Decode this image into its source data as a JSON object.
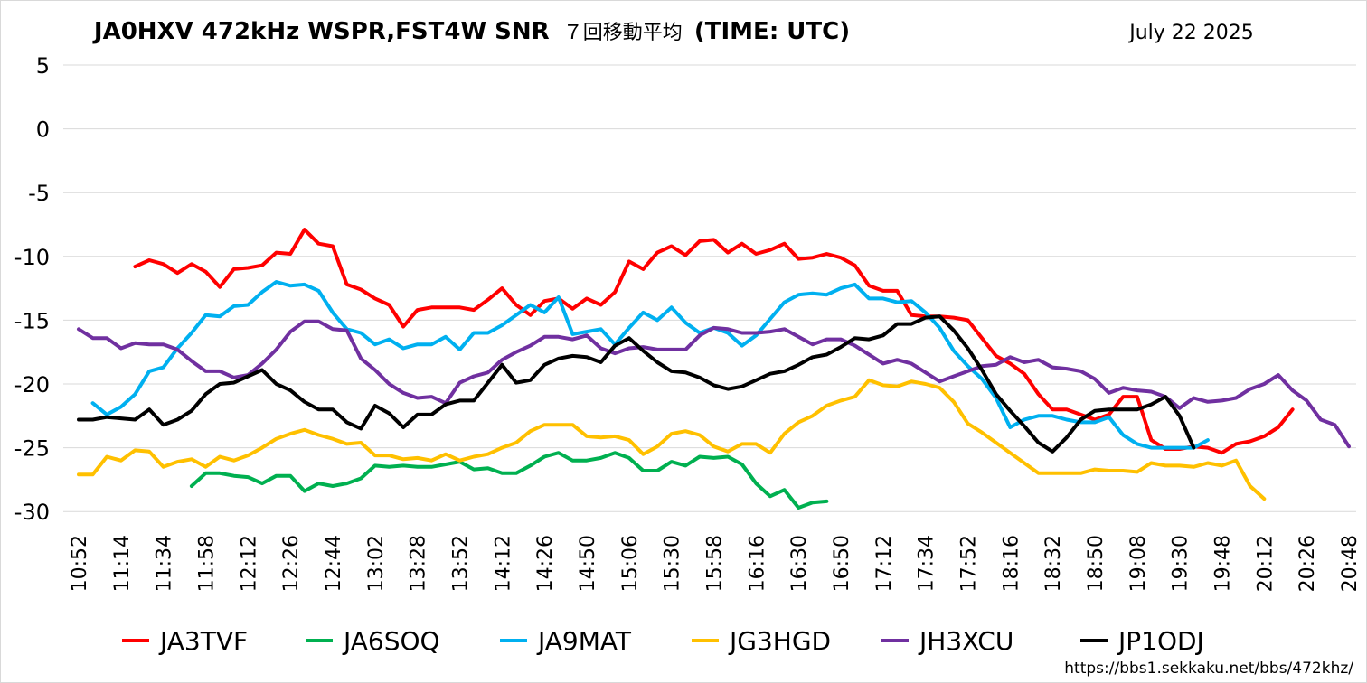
{
  "chart_data": {
    "type": "line",
    "title_main_1": "JA0HXV 472kHz WSPR,FST4W SNR",
    "title_sub": "７回移動平均",
    "title_main_2": "(TIME: UTC)",
    "date": "July 22 2025",
    "footer_url": "https://bbs1.sekkaku.net/bbs/472khz/",
    "xlabel": "",
    "ylabel": "",
    "ylim": [
      -31,
      6
    ],
    "yticks": [
      5,
      0,
      -5,
      -10,
      -15,
      -20,
      -25,
      -30
    ],
    "x_tick_labels": [
      "10:52",
      "11:14",
      "11:34",
      "11:58",
      "12:12",
      "12:26",
      "12:44",
      "13:02",
      "13:28",
      "13:52",
      "14:12",
      "14:26",
      "14:50",
      "15:06",
      "15:30",
      "15:58",
      "16:16",
      "16:30",
      "16:50",
      "17:12",
      "17:34",
      "17:52",
      "18:16",
      "18:32",
      "18:50",
      "19:08",
      "19:30",
      "19:48",
      "20:12",
      "20:26",
      "20:48"
    ],
    "x_count": 91,
    "x_tick_every": 3,
    "legend_position": "bottom",
    "series": [
      {
        "name": "JA3TVF",
        "color": "#ff0000",
        "start": 4,
        "values": [
          -10.8,
          -10.3,
          -10.6,
          -11.3,
          -10.6,
          -11.2,
          -12.4,
          -11,
          -10.9,
          -10.7,
          -9.7,
          -9.8,
          -7.9,
          -9,
          -9.2,
          -12.2,
          -12.6,
          -13.3,
          -13.8,
          -15.5,
          -14.2,
          -14,
          -14,
          -14,
          -14.2,
          -13.4,
          -12.5,
          -13.8,
          -14.6,
          -13.5,
          -13.3,
          -14.1,
          -13.3,
          -13.8,
          -12.8,
          -10.4,
          -11,
          -9.7,
          -9.2,
          -9.9,
          -8.8,
          -8.7,
          -9.7,
          -9,
          -9.8,
          -9.5,
          -9,
          -10.2,
          -10.1,
          -9.8,
          -10.1,
          -10.7,
          -12.3,
          -12.7,
          -12.7,
          -14.6,
          -14.7,
          -14.7,
          -14.8,
          -15,
          -16.4,
          -17.8,
          -18.4,
          -19.2,
          -20.8,
          -22,
          -22,
          -22.4,
          -22.8,
          -22.4,
          -21,
          -21,
          -24.4,
          -25.1,
          -25.1,
          -24.9,
          -25,
          -25.4,
          -24.7,
          -24.5,
          -24.1,
          -23.4,
          -22
        ]
      },
      {
        "name": "JA6SOQ",
        "color": "#00b050",
        "start": 8,
        "values": [
          -28,
          -27,
          -27,
          -27.2,
          -27.3,
          -27.8,
          -27.2,
          -27.2,
          -28.4,
          -27.8,
          -28,
          -27.8,
          -27.4,
          -26.4,
          -26.5,
          -26.4,
          -26.5,
          -26.5,
          -26.3,
          -26.1,
          -26.7,
          -26.6,
          -27,
          -27,
          -26.4,
          -25.7,
          -25.4,
          -26,
          -26,
          -25.8,
          -25.4,
          -25.8,
          -26.8,
          -26.8,
          -26.1,
          -26.4,
          -25.7,
          -25.8,
          -25.7,
          -26.3,
          -27.8,
          -28.8,
          -28.3,
          -29.7,
          -29.3,
          -29.2
        ]
      },
      {
        "name": "JA9MAT",
        "color": "#00b0f0",
        "start": 1,
        "values": [
          -21.5,
          -22.4,
          -21.8,
          -20.8,
          -19,
          -18.7,
          -17.2,
          -16,
          -14.6,
          -14.7,
          -13.9,
          -13.8,
          -12.8,
          -12,
          -12.3,
          -12.2,
          -12.7,
          -14.4,
          -15.7,
          -16,
          -16.9,
          -16.5,
          -17.2,
          -16.9,
          -16.9,
          -16.3,
          -17.3,
          -16,
          -16,
          -15.4,
          -14.6,
          -13.8,
          -14.4,
          -13.2,
          -16.1,
          -15.9,
          -15.7,
          -16.9,
          -15.6,
          -14.4,
          -15,
          -14,
          -15.2,
          -16,
          -15.6,
          -16,
          -17,
          -16.2,
          -14.9,
          -13.6,
          -13,
          -12.9,
          -13,
          -12.5,
          -12.2,
          -13.3,
          -13.3,
          -13.6,
          -13.5,
          -14.4,
          -15.6,
          -17.4,
          -18.6,
          -19.6,
          -21.1,
          -23.4,
          -22.8,
          -22.5,
          -22.5,
          -22.8,
          -23,
          -23,
          -22.6,
          -24,
          -24.7,
          -25,
          -25,
          -25,
          -25,
          -24.4
        ]
      },
      {
        "name": "JG3HGD",
        "color": "#ffc000",
        "start": 0,
        "values": [
          -27.1,
          -27.1,
          -25.7,
          -26,
          -25.2,
          -25.3,
          -26.5,
          -26.1,
          -25.9,
          -26.5,
          -25.7,
          -26,
          -25.6,
          -25,
          -24.3,
          -23.9,
          -23.6,
          -24,
          -24.3,
          -24.7,
          -24.6,
          -25.6,
          -25.6,
          -25.9,
          -25.8,
          -26,
          -25.5,
          -26,
          -25.7,
          -25.5,
          -25,
          -24.6,
          -23.7,
          -23.2,
          -23.2,
          -23.2,
          -24.1,
          -24.2,
          -24.1,
          -24.4,
          -25.5,
          -24.9,
          -23.9,
          -23.7,
          -24,
          -24.9,
          -25.3,
          -24.7,
          -24.7,
          -25.4,
          -23.9,
          -23,
          -22.5,
          -21.7,
          -21.3,
          -21,
          -19.7,
          -20.1,
          -20.2,
          -19.8,
          -20,
          -20.3,
          -21.4,
          -23.1,
          -23.8,
          -24.6,
          -25.4,
          -26.2,
          -27,
          -27,
          -27,
          -27,
          -26.7,
          -26.8,
          -26.8,
          -26.9,
          -26.2,
          -26.4,
          -26.4,
          -26.5,
          -26.2,
          -26.4,
          -26,
          -28,
          -29
        ]
      },
      {
        "name": "JH3XCU",
        "color": "#7030a0",
        "start": 0,
        "values": [
          -15.7,
          -16.4,
          -16.4,
          -17.2,
          -16.8,
          -16.9,
          -16.9,
          -17.3,
          -18.2,
          -19,
          -19,
          -19.5,
          -19.3,
          -18.4,
          -17.3,
          -15.9,
          -15.1,
          -15.1,
          -15.7,
          -15.8,
          -18,
          -18.9,
          -20,
          -20.7,
          -21.1,
          -21,
          -21.5,
          -19.9,
          -19.4,
          -19.1,
          -18.1,
          -17.5,
          -17,
          -16.3,
          -16.3,
          -16.5,
          -16.2,
          -17.2,
          -17.6,
          -17.2,
          -17.1,
          -17.3,
          -17.3,
          -17.3,
          -16.2,
          -15.6,
          -15.7,
          -16,
          -16,
          -15.9,
          -15.7,
          -16.3,
          -16.9,
          -16.5,
          -16.5,
          -17,
          -17.7,
          -18.4,
          -18.1,
          -18.4,
          -19.1,
          -19.8,
          -19.4,
          -19,
          -18.6,
          -18.5,
          -17.9,
          -18.3,
          -18.1,
          -18.7,
          -18.8,
          -19,
          -19.6,
          -20.7,
          -20.3,
          -20.5,
          -20.6,
          -21,
          -21.9,
          -21.1,
          -21.4,
          -21.3,
          -21.1,
          -20.4,
          -20,
          -19.3,
          -20.5,
          -21.3,
          -22.8,
          -23.2,
          -24.9
        ]
      },
      {
        "name": "JP1ODJ",
        "color": "#000000",
        "start": 0,
        "values": [
          -22.8,
          -22.8,
          -22.6,
          -22.7,
          -22.8,
          -22,
          -23.2,
          -22.8,
          -22.1,
          -20.8,
          -20,
          -19.9,
          -19.4,
          -18.9,
          -20,
          -20.5,
          -21.4,
          -22,
          -22,
          -23,
          -23.5,
          -21.7,
          -22.3,
          -23.4,
          -22.4,
          -22.4,
          -21.6,
          -21.3,
          -21.3,
          -19.9,
          -18.5,
          -19.9,
          -19.7,
          -18.5,
          -18,
          -17.8,
          -17.9,
          -18.3,
          -17,
          -16.4,
          -17.4,
          -18.3,
          -19,
          -19.1,
          -19.5,
          -20.1,
          -20.4,
          -20.2,
          -19.7,
          -19.2,
          -19,
          -18.5,
          -17.9,
          -17.7,
          -17.1,
          -16.4,
          -16.5,
          -16.2,
          -15.3,
          -15.3,
          -14.8,
          -14.7,
          -15.8,
          -17.2,
          -18.9,
          -20.8,
          -22.1,
          -23.3,
          -24.6,
          -25.3,
          -24.2,
          -22.8,
          -22.1,
          -22,
          -22,
          -22,
          -21.6,
          -21,
          -22.5,
          -25
        ]
      }
    ]
  }
}
